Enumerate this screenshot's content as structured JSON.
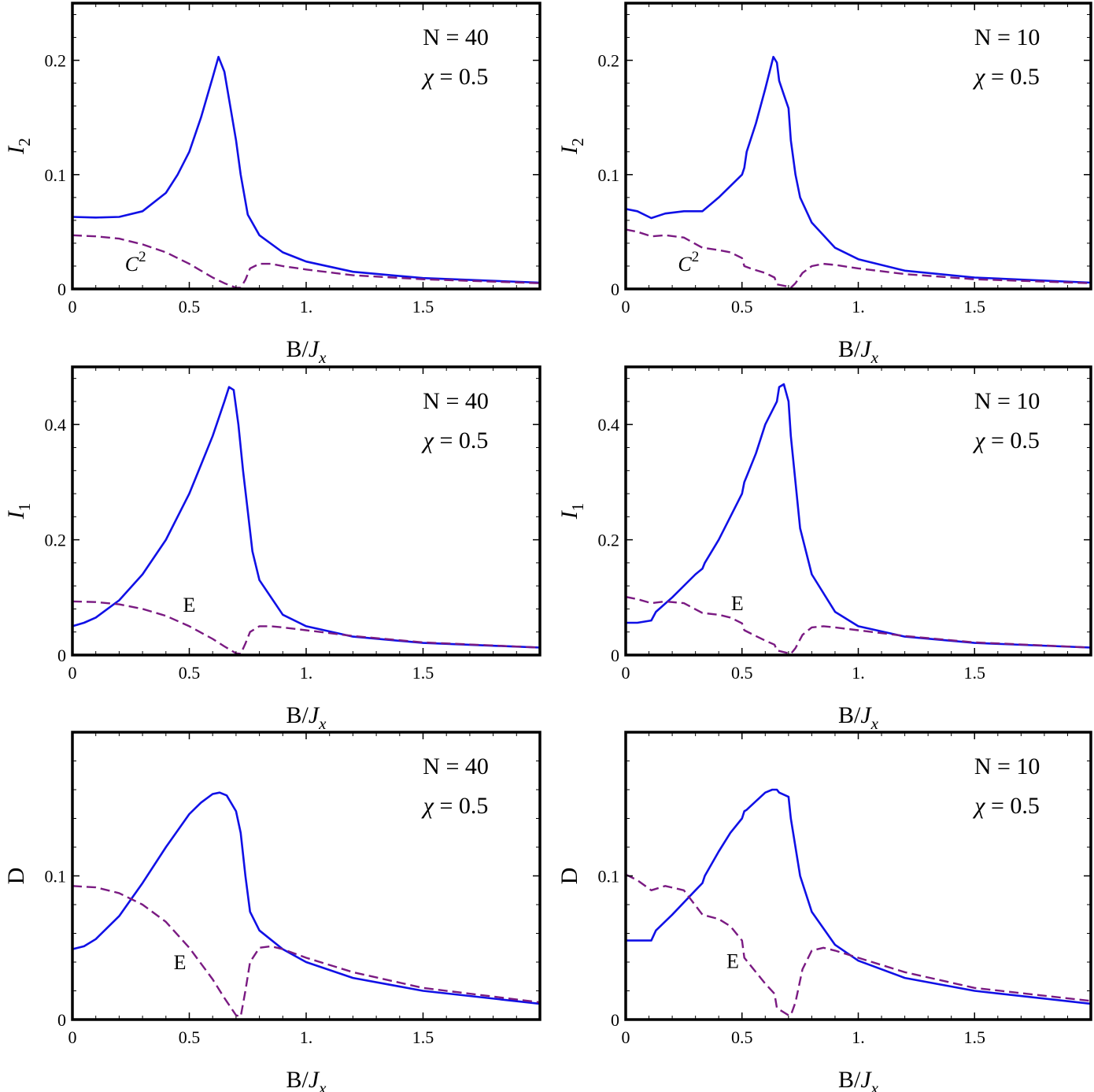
{
  "colors": {
    "solid": "#1010e6",
    "dashed": "#7a1a82",
    "frame": "#000000"
  },
  "chart_data": [
    {
      "id": "p1",
      "type": "line",
      "ylabel": "I",
      "ylabel_sub": "2",
      "xlabel": "B/",
      "xlabel_ital": "J",
      "xlabel_sub": "x",
      "xlim": [
        0,
        2.0
      ],
      "ylim": [
        0,
        0.25
      ],
      "xticks": [
        {
          "v": 0,
          "t": "0"
        },
        {
          "v": 0.5,
          "t": "0.5"
        },
        {
          "v": 1.0,
          "t": "1."
        },
        {
          "v": 1.5,
          "t": "1.5"
        }
      ],
      "yticks": [
        {
          "v": 0,
          "t": "0"
        },
        {
          "v": 0.1,
          "t": "0.1"
        },
        {
          "v": 0.2,
          "t": "0.2"
        }
      ],
      "annotation": [
        "N = 40",
        "χ = 0.5"
      ],
      "dashed_label": {
        "text": "C",
        "sup": "2",
        "x": 0.27,
        "y": 0.016
      },
      "series": [
        {
          "name": "I2",
          "style": "solid",
          "x": [
            0,
            0.1,
            0.2,
            0.3,
            0.4,
            0.45,
            0.5,
            0.55,
            0.6,
            0.625,
            0.65,
            0.7,
            0.72,
            0.75,
            0.8,
            0.9,
            1.0,
            1.2,
            1.5,
            2.0
          ],
          "y": [
            0.063,
            0.0625,
            0.063,
            0.068,
            0.084,
            0.1,
            0.12,
            0.15,
            0.185,
            0.203,
            0.19,
            0.13,
            0.1,
            0.065,
            0.047,
            0.032,
            0.024,
            0.015,
            0.0095,
            0.0055
          ]
        },
        {
          "name": "C2",
          "style": "dashed",
          "x": [
            0,
            0.1,
            0.2,
            0.3,
            0.4,
            0.5,
            0.6,
            0.65,
            0.7,
            0.72,
            0.74,
            0.76,
            0.8,
            0.85,
            0.9,
            1.0,
            1.2,
            1.5,
            2.0
          ],
          "y": [
            0.047,
            0.046,
            0.044,
            0.039,
            0.032,
            0.022,
            0.01,
            0.005,
            0.001,
            0.001,
            0.008,
            0.018,
            0.022,
            0.022,
            0.02,
            0.017,
            0.012,
            0.0085,
            0.005
          ]
        }
      ]
    },
    {
      "id": "p2",
      "type": "line",
      "ylabel": "I",
      "ylabel_sub": "2",
      "xlabel": "B/",
      "xlabel_ital": "J",
      "xlabel_sub": "x",
      "xlim": [
        0,
        2.0
      ],
      "ylim": [
        0,
        0.25
      ],
      "xticks": [
        {
          "v": 0,
          "t": "0"
        },
        {
          "v": 0.5,
          "t": "0.5"
        },
        {
          "v": 1.0,
          "t": "1."
        },
        {
          "v": 1.5,
          "t": "1.5"
        }
      ],
      "yticks": [
        {
          "v": 0,
          "t": "0"
        },
        {
          "v": 0.1,
          "t": "0.1"
        },
        {
          "v": 0.2,
          "t": "0.2"
        }
      ],
      "annotation": [
        "N = 10",
        "χ = 0.5"
      ],
      "dashed_label": {
        "text": "C",
        "sup": "2",
        "x": 0.27,
        "y": 0.016
      },
      "series": [
        {
          "name": "I2",
          "style": "solid",
          "x": [
            0,
            0.05,
            0.11,
            0.17,
            0.25,
            0.33,
            0.4,
            0.45,
            0.5,
            0.51,
            0.52,
            0.56,
            0.6,
            0.635,
            0.65,
            0.66,
            0.68,
            0.7,
            0.71,
            0.73,
            0.75,
            0.8,
            0.9,
            1.0,
            1.2,
            1.5,
            2.0
          ],
          "y": [
            0.07,
            0.068,
            0.062,
            0.066,
            0.068,
            0.068,
            0.08,
            0.09,
            0.1,
            0.106,
            0.12,
            0.145,
            0.175,
            0.203,
            0.198,
            0.182,
            0.17,
            0.158,
            0.13,
            0.1,
            0.08,
            0.058,
            0.036,
            0.026,
            0.016,
            0.01,
            0.0055
          ]
        },
        {
          "name": "C2",
          "style": "dashed",
          "x": [
            0,
            0.05,
            0.11,
            0.17,
            0.25,
            0.33,
            0.4,
            0.45,
            0.5,
            0.51,
            0.55,
            0.6,
            0.64,
            0.65,
            0.7,
            0.71,
            0.73,
            0.76,
            0.8,
            0.85,
            0.9,
            1.0,
            1.2,
            1.5,
            2.0
          ],
          "y": [
            0.052,
            0.05,
            0.046,
            0.047,
            0.045,
            0.036,
            0.034,
            0.032,
            0.027,
            0.02,
            0.017,
            0.014,
            0.01,
            0.004,
            0.002,
            0.001,
            0.005,
            0.014,
            0.02,
            0.022,
            0.021,
            0.018,
            0.013,
            0.0085,
            0.005
          ]
        }
      ]
    },
    {
      "id": "p3",
      "type": "line",
      "ylabel": "I",
      "ylabel_sub": "1",
      "xlabel": "B/",
      "xlabel_ital": "J",
      "xlabel_sub": "x",
      "xlim": [
        0,
        2.0
      ],
      "ylim": [
        0,
        0.5
      ],
      "xticks": [
        {
          "v": 0,
          "t": "0"
        },
        {
          "v": 0.5,
          "t": "0.5"
        },
        {
          "v": 1.0,
          "t": "1."
        },
        {
          "v": 1.5,
          "t": "1.5"
        }
      ],
      "yticks": [
        {
          "v": 0,
          "t": "0"
        },
        {
          "v": 0.2,
          "t": "0.2"
        },
        {
          "v": 0.4,
          "t": "0.4"
        }
      ],
      "annotation": [
        "N = 40",
        "χ = 0.5"
      ],
      "dashed_label": {
        "text": "E",
        "sup": "",
        "x": 0.5,
        "y": 0.075
      },
      "series": [
        {
          "name": "I1",
          "style": "solid",
          "x": [
            0,
            0.05,
            0.1,
            0.2,
            0.3,
            0.4,
            0.5,
            0.55,
            0.6,
            0.65,
            0.67,
            0.69,
            0.71,
            0.73,
            0.75,
            0.77,
            0.8,
            0.9,
            1.0,
            1.2,
            1.5,
            2.0
          ],
          "y": [
            0.05,
            0.056,
            0.065,
            0.095,
            0.14,
            0.2,
            0.28,
            0.33,
            0.38,
            0.44,
            0.465,
            0.46,
            0.4,
            0.32,
            0.25,
            0.18,
            0.13,
            0.07,
            0.05,
            0.032,
            0.021,
            0.013
          ]
        },
        {
          "name": "E",
          "style": "dashed",
          "x": [
            0,
            0.1,
            0.2,
            0.3,
            0.4,
            0.5,
            0.6,
            0.65,
            0.7,
            0.72,
            0.74,
            0.76,
            0.8,
            0.85,
            0.9,
            1.0,
            1.2,
            1.5,
            2.0
          ],
          "y": [
            0.093,
            0.092,
            0.088,
            0.08,
            0.068,
            0.05,
            0.028,
            0.015,
            0.003,
            0.002,
            0.02,
            0.04,
            0.05,
            0.05,
            0.048,
            0.043,
            0.033,
            0.022,
            0.013
          ]
        }
      ]
    },
    {
      "id": "p4",
      "type": "line",
      "ylabel": "I",
      "ylabel_sub": "1",
      "xlabel": "B/",
      "xlabel_ital": "J",
      "xlabel_sub": "x",
      "xlim": [
        0,
        2.0
      ],
      "ylim": [
        0,
        0.5
      ],
      "xticks": [
        {
          "v": 0,
          "t": "0"
        },
        {
          "v": 0.5,
          "t": "0.5"
        },
        {
          "v": 1.0,
          "t": "1."
        },
        {
          "v": 1.5,
          "t": "1.5"
        }
      ],
      "yticks": [
        {
          "v": 0,
          "t": "0"
        },
        {
          "v": 0.2,
          "t": "0.2"
        },
        {
          "v": 0.4,
          "t": "0.4"
        }
      ],
      "annotation": [
        "N = 10",
        "χ = 0.5"
      ],
      "dashed_label": {
        "text": "E",
        "sup": "",
        "x": 0.48,
        "y": 0.078
      },
      "series": [
        {
          "name": "I1",
          "style": "solid",
          "x": [
            0,
            0.05,
            0.11,
            0.13,
            0.2,
            0.3,
            0.33,
            0.34,
            0.4,
            0.45,
            0.5,
            0.51,
            0.52,
            0.56,
            0.6,
            0.65,
            0.66,
            0.68,
            0.7,
            0.71,
            0.73,
            0.75,
            0.8,
            0.9,
            1.0,
            1.2,
            1.5,
            2.0
          ],
          "y": [
            0.056,
            0.056,
            0.06,
            0.075,
            0.1,
            0.14,
            0.15,
            0.16,
            0.2,
            0.24,
            0.28,
            0.3,
            0.31,
            0.35,
            0.4,
            0.44,
            0.465,
            0.47,
            0.44,
            0.38,
            0.3,
            0.22,
            0.14,
            0.075,
            0.05,
            0.032,
            0.021,
            0.013
          ]
        },
        {
          "name": "E",
          "style": "dashed",
          "x": [
            0,
            0.05,
            0.11,
            0.17,
            0.25,
            0.33,
            0.4,
            0.45,
            0.5,
            0.51,
            0.55,
            0.6,
            0.64,
            0.65,
            0.7,
            0.71,
            0.73,
            0.76,
            0.8,
            0.85,
            0.9,
            1.0,
            1.2,
            1.5,
            2.0
          ],
          "y": [
            0.101,
            0.097,
            0.09,
            0.093,
            0.09,
            0.073,
            0.07,
            0.065,
            0.055,
            0.043,
            0.035,
            0.025,
            0.018,
            0.008,
            0.003,
            0.002,
            0.012,
            0.035,
            0.048,
            0.05,
            0.048,
            0.043,
            0.033,
            0.022,
            0.013
          ]
        }
      ]
    },
    {
      "id": "p5",
      "type": "line",
      "ylabel": "D",
      "ylabel_sub": "",
      "xlabel": "B/",
      "xlabel_ital": "J",
      "xlabel_sub": "x",
      "xlim": [
        0,
        2.0
      ],
      "ylim": [
        0,
        0.2
      ],
      "xticks": [
        {
          "v": 0,
          "t": "0"
        },
        {
          "v": 0.5,
          "t": "0.5"
        },
        {
          "v": 1.0,
          "t": "1."
        },
        {
          "v": 1.5,
          "t": "1.5"
        }
      ],
      "yticks": [
        {
          "v": 0,
          "t": "0"
        },
        {
          "v": 0.1,
          "t": "0.1"
        }
      ],
      "annotation": [
        "N = 40",
        "χ = 0.5"
      ],
      "dashed_label": {
        "text": "E",
        "sup": "",
        "x": 0.46,
        "y": 0.035
      },
      "series": [
        {
          "name": "D",
          "style": "solid",
          "x": [
            0,
            0.05,
            0.1,
            0.2,
            0.3,
            0.4,
            0.5,
            0.55,
            0.6,
            0.63,
            0.66,
            0.7,
            0.72,
            0.74,
            0.76,
            0.8,
            0.9,
            1.0,
            1.2,
            1.5,
            2.0
          ],
          "y": [
            0.049,
            0.051,
            0.056,
            0.072,
            0.095,
            0.12,
            0.143,
            0.151,
            0.157,
            0.158,
            0.156,
            0.145,
            0.13,
            0.1,
            0.075,
            0.062,
            0.049,
            0.04,
            0.029,
            0.02,
            0.011
          ]
        },
        {
          "name": "E",
          "style": "dashed",
          "x": [
            0,
            0.1,
            0.2,
            0.3,
            0.4,
            0.5,
            0.6,
            0.65,
            0.7,
            0.72,
            0.74,
            0.76,
            0.8,
            0.85,
            0.9,
            1.0,
            1.2,
            1.5,
            2.0
          ],
          "y": [
            0.093,
            0.092,
            0.088,
            0.08,
            0.068,
            0.05,
            0.028,
            0.015,
            0.003,
            0.002,
            0.02,
            0.04,
            0.05,
            0.051,
            0.049,
            0.043,
            0.033,
            0.022,
            0.012
          ]
        }
      ]
    },
    {
      "id": "p6",
      "type": "line",
      "ylabel": "D",
      "ylabel_sub": "",
      "xlabel": "B/",
      "xlabel_ital": "J",
      "xlabel_sub": "x",
      "xlim": [
        0,
        2.0
      ],
      "ylim": [
        0,
        0.2
      ],
      "xticks": [
        {
          "v": 0,
          "t": "0"
        },
        {
          "v": 0.5,
          "t": "0.5"
        },
        {
          "v": 1.0,
          "t": "1."
        },
        {
          "v": 1.5,
          "t": "1.5"
        }
      ],
      "yticks": [
        {
          "v": 0,
          "t": "0"
        },
        {
          "v": 0.1,
          "t": "0.1"
        }
      ],
      "annotation": [
        "N = 10",
        "χ = 0.5"
      ],
      "dashed_label": {
        "text": "E",
        "sup": "",
        "x": 0.46,
        "y": 0.036
      },
      "series": [
        {
          "name": "D",
          "style": "solid",
          "x": [
            0,
            0.05,
            0.11,
            0.13,
            0.2,
            0.3,
            0.33,
            0.34,
            0.4,
            0.45,
            0.5,
            0.51,
            0.52,
            0.56,
            0.6,
            0.63,
            0.65,
            0.66,
            0.7,
            0.71,
            0.73,
            0.75,
            0.8,
            0.9,
            1.0,
            1.2,
            1.5,
            2.0
          ],
          "y": [
            0.055,
            0.055,
            0.055,
            0.062,
            0.073,
            0.09,
            0.095,
            0.1,
            0.117,
            0.13,
            0.14,
            0.145,
            0.146,
            0.152,
            0.158,
            0.16,
            0.16,
            0.158,
            0.155,
            0.14,
            0.12,
            0.1,
            0.075,
            0.052,
            0.041,
            0.029,
            0.02,
            0.011
          ]
        },
        {
          "name": "E",
          "style": "dashed",
          "x": [
            0,
            0.05,
            0.11,
            0.17,
            0.25,
            0.33,
            0.4,
            0.45,
            0.5,
            0.51,
            0.55,
            0.6,
            0.64,
            0.65,
            0.7,
            0.71,
            0.73,
            0.76,
            0.8,
            0.85,
            0.9,
            1.0,
            1.2,
            1.5,
            2.0
          ],
          "y": [
            0.101,
            0.097,
            0.09,
            0.093,
            0.09,
            0.073,
            0.07,
            0.065,
            0.055,
            0.043,
            0.035,
            0.025,
            0.018,
            0.008,
            0.003,
            0.003,
            0.012,
            0.035,
            0.048,
            0.05,
            0.048,
            0.043,
            0.033,
            0.022,
            0.013
          ]
        }
      ]
    }
  ]
}
